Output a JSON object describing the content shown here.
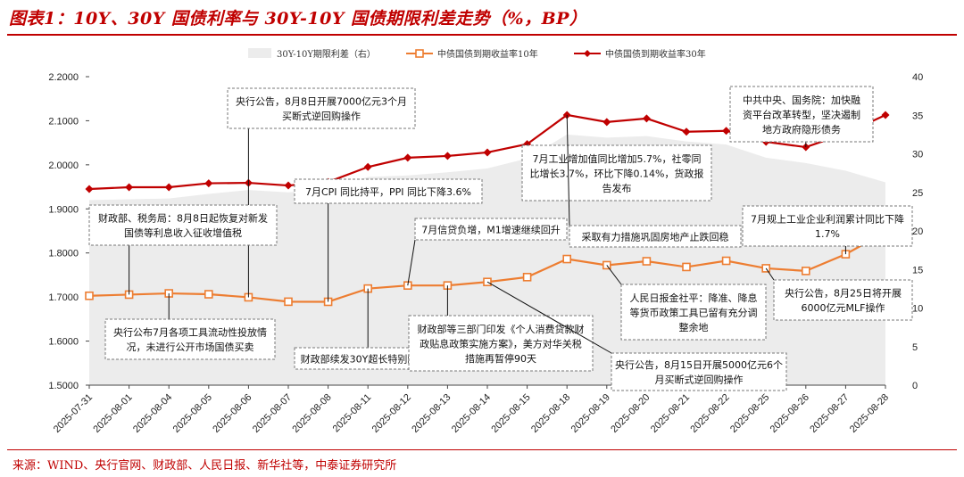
{
  "title": "图表1：10Y、30Y 国债利率与 30Y-10Y 国债期限利差走势（%，BP）",
  "source": "来源：WIND、央行官网、财政部、人民日报、新华社等，中泰证券研究所",
  "colors": {
    "title": "#c00000",
    "spread": "#ececec",
    "y10": "#ed7d31",
    "y30": "#c00000"
  },
  "chart_data": {
    "type": "line",
    "categories": [
      "2025-07-31",
      "2025-08-01",
      "2025-08-04",
      "2025-08-05",
      "2025-08-06",
      "2025-08-07",
      "2025-08-08",
      "2025-08-11",
      "2025-08-12",
      "2025-08-13",
      "2025-08-14",
      "2025-08-15",
      "2025-08-18",
      "2025-08-19",
      "2025-08-20",
      "2025-08-21",
      "2025-08-22",
      "2025-08-25",
      "2025-08-26",
      "2025-08-27",
      "2025-08-28"
    ],
    "series": [
      {
        "name": "30Y-10Y期限利差（右）",
        "kind": "area",
        "axis": "right",
        "values": [
          24.0,
          24.1,
          24.2,
          24.8,
          25.3,
          25.0,
          25.5,
          27.0,
          27.2,
          27.6,
          28.1,
          29.4,
          32.5,
          32.1,
          32.3,
          31.6,
          31.2,
          29.5,
          28.8,
          27.8,
          26.3
        ]
      },
      {
        "name": "中债国债到期收益率10年",
        "kind": "line",
        "axis": "left",
        "marker": "square",
        "values": [
          1.7028,
          1.7055,
          1.7083,
          1.7063,
          1.6994,
          1.6894,
          1.6892,
          1.7192,
          1.7262,
          1.7262,
          1.7342,
          1.7452,
          1.7862,
          1.7722,
          1.7812,
          1.7682,
          1.7822,
          1.7652,
          1.7592,
          1.7972,
          1.8472
        ]
      },
      {
        "name": "中债国债到期收益率30年",
        "kind": "line",
        "axis": "left",
        "marker": "diamond",
        "values": [
          1.9451,
          1.9491,
          1.9491,
          1.9581,
          1.9591,
          1.9531,
          1.9611,
          1.9951,
          2.0161,
          2.0201,
          2.0281,
          2.0471,
          2.1131,
          2.0971,
          2.1051,
          2.0751,
          2.0771,
          2.0521,
          2.0401,
          2.0711,
          2.1131
        ]
      }
    ],
    "ylim": [
      1.5,
      2.2
    ],
    "yticks": [
      "1.5000",
      "1.6000",
      "1.7000",
      "1.8000",
      "1.9000",
      "2.0000",
      "2.1000",
      "2.2000"
    ],
    "y2lim": [
      0,
      40
    ],
    "y2ticks": [
      "0",
      "5",
      "10",
      "15",
      "20",
      "25",
      "30",
      "35",
      "40"
    ],
    "legend_position": "top-center",
    "annotations": [
      {
        "lines": [
          "央行公告，8月8日开展7000亿元3个月",
          "买断式逆回购操作"
        ]
      },
      {
        "lines": [
          "财政部、税务局：8月8日起恢复对新发",
          "国债等利息收入征收增值税"
        ]
      },
      {
        "lines": [
          "7月CPI 同比持平，PPI 同比下降3.6%"
        ]
      },
      {
        "lines": [
          "7月工业增加值同比增加5.7%，社零同",
          "比增长3.7%，环比下降0.14%，货政报",
          "告发布"
        ]
      },
      {
        "lines": [
          "中共中央、国务院：加快融",
          "资平台改革转型，坚决遏制",
          "地方政府隐形债务"
        ]
      },
      {
        "lines": [
          "7月规上工业企业利润累计同比下降",
          "1.7%"
        ]
      },
      {
        "lines": [
          "7月信贷负增，M1增速继续回升"
        ]
      },
      {
        "lines": [
          "采取有力措施巩固房地产止跌回稳"
        ]
      },
      {
        "lines": [
          "人民日报金社平：降准、降息",
          "等货币政策工具已留有充分调",
          "整余地"
        ]
      },
      {
        "lines": [
          "央行公告，8月25日将开展",
          "6000亿元MLF操作"
        ]
      },
      {
        "lines": [
          "央行公布7月各项工具流动性投放情",
          "况，未进行公开市场国债买卖"
        ]
      },
      {
        "lines": [
          "财政部续发30Y超长特别国债"
        ]
      },
      {
        "lines": [
          "财政部等三部门印发《个人消费贷款财",
          "政贴息政策实施方案》，美方对华关税",
          "措施再暂停90天"
        ]
      },
      {
        "lines": [
          "央行公告，8月15日开展5000亿元6个",
          "月买断式逆回购操作"
        ]
      }
    ]
  }
}
